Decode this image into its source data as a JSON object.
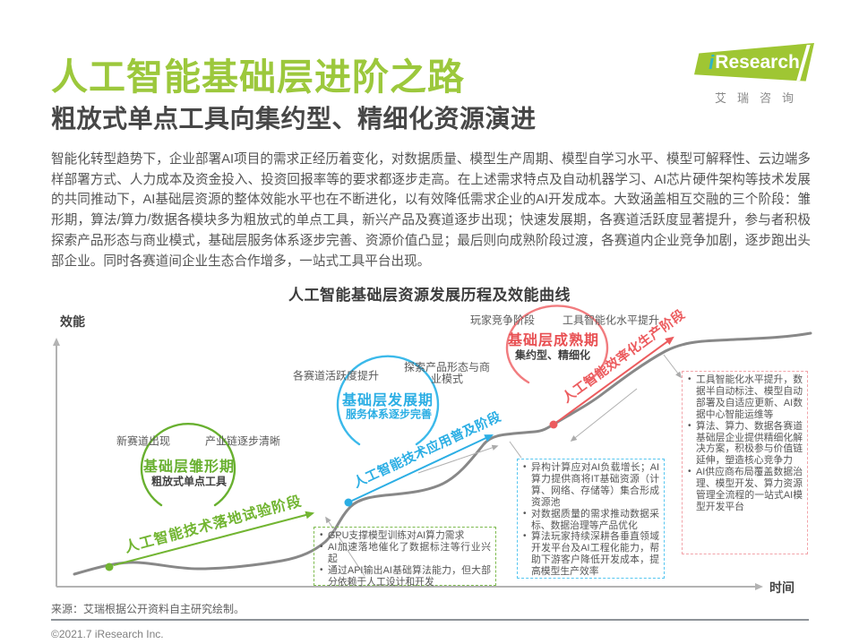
{
  "header": {
    "title": "人工智能基础层进阶之路",
    "subtitle": "粗放式单点工具向集约型、精细化资源演进",
    "logo": {
      "i": "i",
      "brand": "Research",
      "chinese": "艾瑞咨询"
    }
  },
  "intro": "智能化转型趋势下，企业部署AI项目的需求正经历着变化，对数据质量、模型生产周期、模型自学习水平、模型可解释性、云边端多样部署方式、人力成本及资金投入、投资回报率等的要求都逐步走高。在上述需求特点及自动机器学习、AI芯片硬件架构等技术发展的共同推动下，AI基础层资源的整体效能水平也在不断进化，以有效降低需求企业的AI开发成本。大致涵盖相互交融的三个阶段：雏形期，算法/算力/数据各模块多为粗放式的单点工具，新兴产品及赛道逐步出现；快速发展期，各赛道活跃度显著提升，参与者积极探索产品形态与商业模式，基础层服务体系逐步完善、资源价值凸显；最后则向成熟阶段过渡，各赛道内企业竞争加剧，逐步跑出头部企业。同时各赛道间企业生态合作增多，一站式工具平台出现。",
  "chart": {
    "title": "人工智能基础层资源发展历程及效能曲线",
    "y_axis": "效能",
    "x_axis": "时间",
    "colors": {
      "green": "#72B532",
      "blue": "#2BAEE4",
      "red": "#EC5B5E",
      "curve": "#888888"
    },
    "stages": [
      {
        "name": "基础层雏形期",
        "tagline": "粗放式单点工具",
        "labels": [
          "新赛道出现",
          "产业链逐步清晰"
        ],
        "arrow_label": "人工智能技术落地试验阶段",
        "notes": [
          "GPU支撑模型训练对AI算力需求",
          "AI加速落地催化了数据标注等行业兴起",
          "通过API输出AI基础算法能力，但大部分依赖于人工设计和开发"
        ]
      },
      {
        "name": "基础层发展期",
        "tagline": "服务体系逐步完善",
        "labels": [
          "各赛道活跃度提升",
          "探索产品形态与商业模式"
        ],
        "arrow_label": "人工智能技术应用普及阶段",
        "notes": [
          "异构计算应对AI负载增长；AI算力提供商将IT基础资源（计算、网络、存储等）集合形成资源池",
          "对数据质量的需求推动数据采标、数据治理等产品优化",
          "算法玩家持续深耕各垂直领域开发平台及AI工程化能力，帮助下游客户降低开发成本，提高模型生产效率"
        ]
      },
      {
        "name": "基础层成熟期",
        "tagline": "集约型、精细化",
        "labels": [
          "玩家竞争阶段",
          "工具智能化水平提升"
        ],
        "arrow_label": "人工智能效率化生产阶段",
        "notes": [
          "工具智能化水平提升，数据半自动标注、模型自动部署及自适应更新、AI数据中心智能运维等",
          "算法、算力、数据各赛道基础层企业提供精细化解决方案，积极参与价值链延伸，塑造核心竞争力",
          "AI供应商布局覆盖数据治理、模型开发、算力资源管理全流程的一站式AI模型开发平台"
        ]
      }
    ]
  },
  "footer": {
    "source": "来源：艾瑞根据公开资料自主研究绘制。",
    "copyright": "©2021.7 iResearch Inc."
  }
}
